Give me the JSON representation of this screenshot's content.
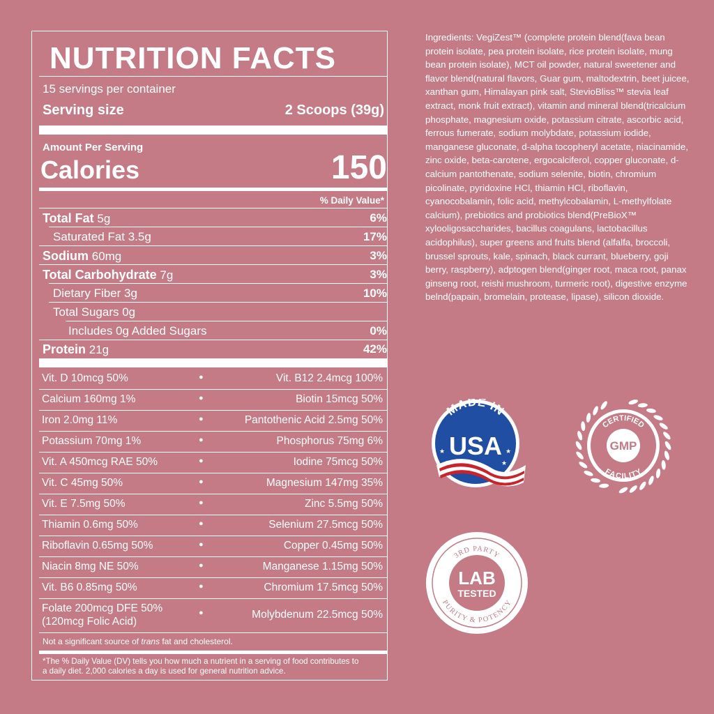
{
  "panel": {
    "title": "NUTRITION FACTS",
    "servings": "15 servings per container",
    "serving_label": "Serving size",
    "serving_value": "2 Scoops (39g)",
    "amount_per": "Amount Per Serving",
    "calories_label": "Calories",
    "calories_value": "150",
    "dv_header": "% Daily Value*",
    "nutrients": [
      {
        "name": "Total Fat",
        "amount": "5g",
        "pct": "6%"
      },
      {
        "name": "Saturated Fat 3.5g",
        "pct": "17%"
      },
      {
        "name": "Sodium",
        "amount": "60mg",
        "pct": "3%"
      },
      {
        "name": "Total Carbohydrate",
        "amount": "7g",
        "pct": "3%"
      },
      {
        "name": "Dietary Fiber 3g",
        "pct": "10%"
      },
      {
        "name": "Total Sugars 0g"
      },
      {
        "name": "Includes 0g Added Sugars",
        "pct": "0%"
      },
      {
        "name": "Protein",
        "amount": "21g",
        "pct": "42%"
      }
    ],
    "vitamins": [
      {
        "left": "Vit. D 10mcg 50%",
        "right": "Vit. B12 2.4mcg 100%"
      },
      {
        "left": "Calcium 160mg 1%",
        "right": "Biotin 15mcg 50%"
      },
      {
        "left": "Iron 2.0mg 11%",
        "right": "Pantothenic Acid 2.5mg 50%"
      },
      {
        "left": "Potassium 70mg 1%",
        "right": "Phosphorus 75mg 6%"
      },
      {
        "left": "Vit. A 450mcg RAE 50%",
        "right": "Iodine 75mcg 50%"
      },
      {
        "left": "Vit. C 45mg 50%",
        "right": "Magnesium 147mg 35%"
      },
      {
        "left": "Vit. E 7.5mg 50%",
        "right": "Zinc 5.5mg 50%"
      },
      {
        "left": "Thiamin 0.6mg 50%",
        "right": "Selenium 27.5mcg 50%"
      },
      {
        "left": "Riboflavin 0.65mg 50%",
        "right": "Copper 0.45mg 50%"
      },
      {
        "left": "Niacin 8mg NE 50%",
        "right": "Manganese 1.15mg 50%"
      },
      {
        "left": "Vit. B6 0.85mg 50%",
        "right": "Chromium 17.5mcg 50%"
      },
      {
        "left": "Folate 200mcg DFE 50%",
        "left2": "(120mcg Folic Acid)",
        "right": "Molybdenum 22.5mcg 50%"
      }
    ],
    "bullet": "●",
    "not_significant_1": "Not a significant source of ",
    "not_significant_em": "trans",
    "not_significant_2": " fat and cholesterol.",
    "footnote_1": "*The % Daily Value (DV) tells you how much a nutrient in a serving of food contributes to",
    "footnote_2": "a daily diet. 2,000 calories a day is used for general nutrition advice."
  },
  "ingredients": "Ingredients: VegiZest™ (complete protein blend(fava bean protein isolate, pea protein isolate, rice protein isolate, mung bean protein isolate), MCT oil powder, natural sweetener and flavor blend(natural flavors, Guar gum, maltodextrin, beet juicee, xanthan gum, Himalayan pink salt, StevioBliss™ stevia leaf extract, monk fruit extract), vitamin and mineral blend(tricalcium phosphate, magnesium oxide, potassium citrate, ascorbic acid, ferrous fumerate, sodium molybdate, potassium iodide, manganese gluconate, d-alpha tocopheryl acetate, niacinamide, zinc oxide, beta-carotene, ergocalciferol, copper gluconate, d-calcium pantothenate, sodium selenite, biotin, chromium picolinate, pyridoxine HCl, thiamin HCl, riboflavin, cyanocobalamin, folic acid, methylcobalamin, L-methylfolate calcium), prebiotics and probiotics blend(PreBioX™ xylooligosaccharides, bacillus coagulans, lactobacillus acidophilus), super greens and fruits blend (alfalfa, broccoli, brussel sprouts, kale, spinach, black currant, blueberry, goji berry, raspberry), adptogen blend(ginger root, maca root, panax ginseng root, reishi mushroom, turmeric root), digestive enzyme belnd(papain, bromelain, protease, lipase), silicon dioxide.",
  "badges": {
    "usa_top": "MADE IN",
    "usa_main": "USA",
    "gmp_top": "CERTIFIED",
    "gmp_main": "GMP",
    "gmp_bottom": "FACILITY",
    "lab_top": "3RD PARTY",
    "lab_main_1": "LAB",
    "lab_main_2": "TESTED",
    "lab_bottom": "PURITY & POTENCY"
  },
  "colors": {
    "background": "#c47b86",
    "badge_blue": "#1f4ea3",
    "badge_red": "#c8242c"
  }
}
